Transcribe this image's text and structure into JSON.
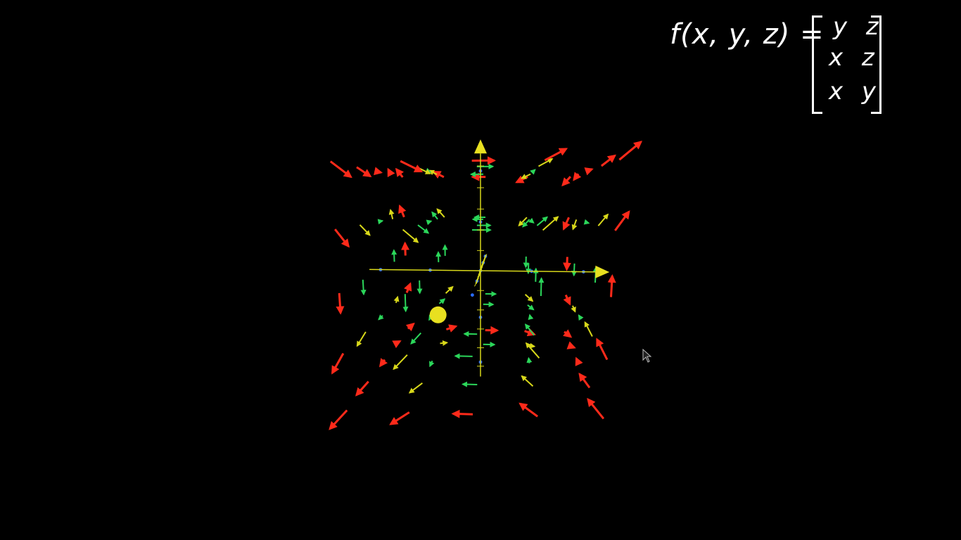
{
  "formula": {
    "lhs": "f(x, y, z) =",
    "eq": "",
    "row1": "y z",
    "row2": "x z",
    "row3": "x y"
  },
  "colors": {
    "background": "#000000",
    "axis": "#d8d81a",
    "cone": "#e8e020",
    "sphere": "#e8e020",
    "formula_text": "#ffffff",
    "magnitude_low": "#2a6dff",
    "magnitude_mid_low": "#19d6e0",
    "magnitude_mid": "#2bd65a",
    "magnitude_mid_high": "#d8d81a",
    "magnitude_high": "#ff2a1a"
  },
  "icons": {
    "cursor": "mouse-pointer-icon",
    "origin_marker": "sphere-icon"
  }
}
